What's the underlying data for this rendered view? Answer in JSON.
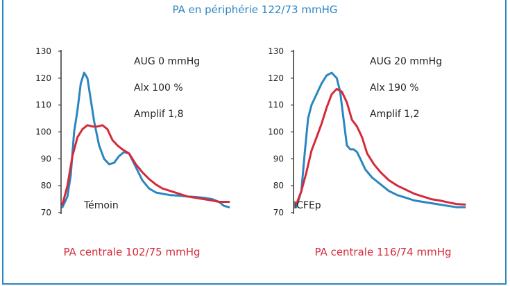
{
  "header": {
    "title": "PA en périphérie 122/73 mmHG"
  },
  "colors": {
    "central": "#d42a3a",
    "peripheral": "#2a86c0",
    "frame": "#2a86c0"
  },
  "chart_data": [
    {
      "type": "line",
      "label": "Témoin",
      "ylim": [
        70,
        130
      ],
      "yticks": [
        "70",
        "80",
        "90",
        "100",
        "110",
        "120",
        "130"
      ],
      "annotations": [
        "AUG 0 mmHg",
        "Alx 100 %",
        "Amplif 1,8"
      ],
      "caption": "PA centrale 102/75 mmHg",
      "series": [
        {
          "color": "peripheral",
          "x": [
            0,
            0.03,
            0.05,
            0.07,
            0.09,
            0.11,
            0.13,
            0.15,
            0.17,
            0.19,
            0.22,
            0.25,
            0.28,
            0.31,
            0.34,
            0.37,
            0.4,
            0.44,
            0.48,
            0.52,
            0.56,
            0.6,
            0.65,
            0.7,
            0.75,
            0.8,
            0.85,
            0.9,
            0.94,
            0.97,
            1.0
          ],
          "y": [
            72,
            76,
            84,
            100,
            108,
            118,
            122,
            120,
            112,
            104,
            95,
            90,
            88,
            88.5,
            91,
            92.5,
            92,
            87,
            82,
            79,
            77.5,
            77,
            76.5,
            76.3,
            76,
            75.8,
            75.5,
            75,
            74,
            72.5,
            72
          ]
        },
        {
          "color": "central",
          "x": [
            0,
            0.03,
            0.06,
            0.09,
            0.12,
            0.15,
            0.18,
            0.21,
            0.24,
            0.27,
            0.3,
            0.33,
            0.36,
            0.4,
            0.44,
            0.48,
            0.52,
            0.56,
            0.6,
            0.65,
            0.7,
            0.75,
            0.8,
            0.85,
            0.9,
            0.94,
            0.97,
            1.0
          ],
          "y": [
            73,
            80,
            91,
            98,
            101,
            102.5,
            102,
            102,
            102.5,
            101,
            97,
            95,
            93.5,
            92,
            88,
            85,
            82.5,
            80.5,
            79,
            78,
            77,
            76,
            75.5,
            75,
            74.5,
            74,
            74,
            74
          ]
        }
      ]
    },
    {
      "type": "line",
      "label": "ICFEp",
      "ylim": [
        70,
        130
      ],
      "yticks": [
        "70",
        "80",
        "90",
        "100",
        "110",
        "120",
        "130"
      ],
      "annotations": [
        "AUG 20 mmHg",
        "Alx 190 %",
        "Amplif 1,2"
      ],
      "caption": "PA centrale 116/74 mmHg",
      "series": [
        {
          "color": "peripheral",
          "x": [
            0,
            0.03,
            0.05,
            0.07,
            0.09,
            0.12,
            0.15,
            0.18,
            0.21,
            0.24,
            0.26,
            0.28,
            0.3,
            0.32,
            0.34,
            0.36,
            0.38,
            0.41,
            0.45,
            0.5,
            0.55,
            0.6,
            0.65,
            0.7,
            0.75,
            0.8,
            0.85,
            0.9,
            0.95,
            1.0
          ],
          "y": [
            72,
            78,
            92,
            105,
            110,
            114,
            118,
            121,
            122,
            120,
            115,
            105,
            95,
            93.5,
            93.5,
            92.5,
            90,
            86,
            83,
            80.5,
            78,
            76.5,
            75.5,
            74.5,
            74,
            73.5,
            73,
            72.5,
            72,
            72
          ]
        },
        {
          "color": "central",
          "x": [
            0,
            0.03,
            0.06,
            0.09,
            0.12,
            0.15,
            0.18,
            0.21,
            0.24,
            0.27,
            0.3,
            0.33,
            0.36,
            0.39,
            0.42,
            0.46,
            0.5,
            0.55,
            0.6,
            0.65,
            0.7,
            0.75,
            0.8,
            0.85,
            0.9,
            0.95,
            1.0
          ],
          "y": [
            73,
            78,
            85,
            93,
            98,
            103,
            109,
            114,
            116,
            115,
            111,
            104.5,
            102,
            98,
            92,
            88,
            85,
            82,
            80,
            78.5,
            77,
            76,
            75,
            74.5,
            73.8,
            73.2,
            73
          ]
        }
      ]
    }
  ]
}
